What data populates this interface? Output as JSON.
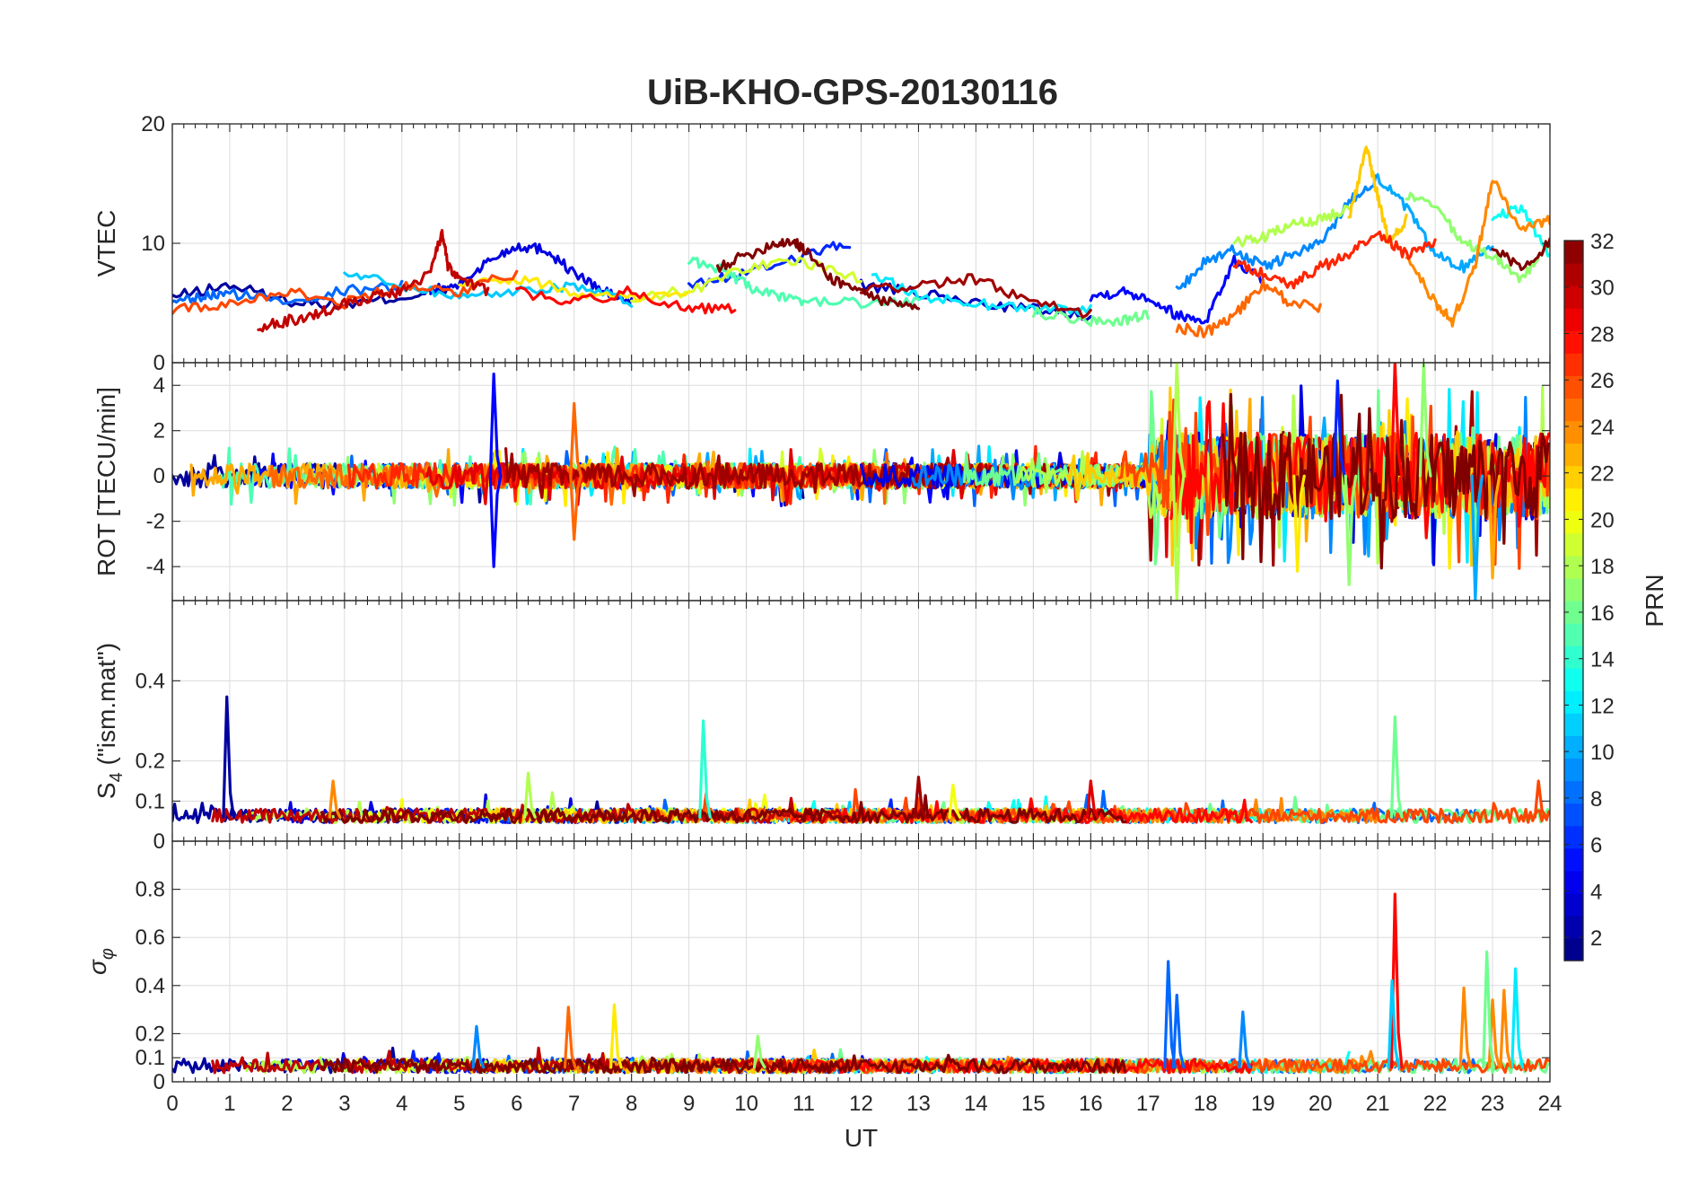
{
  "chart_data": {
    "type": "line",
    "title": "UiB-KHO-GPS-20130116",
    "xlabel": "UT",
    "xlim": [
      0,
      24
    ],
    "xticks": [
      0,
      1,
      2,
      3,
      4,
      5,
      6,
      7,
      8,
      9,
      10,
      11,
      12,
      13,
      14,
      15,
      16,
      17,
      18,
      19,
      20,
      21,
      22,
      23,
      24
    ],
    "grid": true,
    "colorbar": {
      "label": "PRN",
      "range": [
        1,
        32
      ],
      "ticks": [
        2,
        4,
        6,
        8,
        10,
        12,
        14,
        16,
        18,
        20,
        22,
        24,
        26,
        28,
        30,
        32
      ],
      "colormap": "jet",
      "placement": "right"
    },
    "panels": [
      {
        "id": "vtec",
        "ylabel": "VTEC",
        "ylim": [
          0,
          20
        ],
        "yticks": [
          0,
          10,
          20
        ],
        "series": [
          {
            "prn": 2,
            "x": [
              0,
              1,
              2,
              3,
              4,
              4.8
            ],
            "y": [
              5.5,
              6.5,
              5.2,
              4.8,
              5.5,
              6
            ]
          },
          {
            "prn": 4,
            "x": [
              4.5,
              5,
              5.5,
              6,
              6.5,
              7,
              7.5,
              8
            ],
            "y": [
              6,
              6.5,
              8.5,
              9.8,
              9.5,
              7.5,
              6,
              5
            ]
          },
          {
            "prn": 6,
            "x": [
              9,
              10,
              11,
              11.8
            ],
            "y": [
              6.5,
              7.5,
              9,
              10
            ]
          },
          {
            "prn": 3,
            "x": [
              12,
              13,
              14,
              15,
              16
            ],
            "y": [
              6.5,
              5.8,
              5,
              4.5,
              4
            ]
          },
          {
            "prn": 5,
            "x": [
              16,
              16.5,
              17,
              17.5,
              18,
              18.5,
              19
            ],
            "y": [
              5.5,
              6,
              5.5,
              4,
              3.5,
              8.5,
              7
            ]
          },
          {
            "prn": 8,
            "x": [
              0,
              0.5,
              1,
              2,
              3,
              4
            ],
            "y": [
              4.8,
              5.5,
              5.8,
              5.2,
              6,
              6.5
            ]
          },
          {
            "prn": 9,
            "x": [
              17.5,
              18,
              18.5,
              19,
              19.5,
              20,
              20.5,
              21
            ],
            "y": [
              6,
              8.5,
              9.5,
              8,
              9,
              10,
              13.5,
              15.5
            ]
          },
          {
            "prn": 10,
            "x": [
              21,
              21.5,
              22,
              22.5,
              23
            ],
            "y": [
              15.5,
              13,
              9,
              8,
              10
            ]
          },
          {
            "prn": 11,
            "x": [
              3,
              4,
              5,
              6,
              7,
              8
            ],
            "y": [
              7.5,
              6.5,
              5.5,
              6,
              6.5,
              5
            ]
          },
          {
            "prn": 12,
            "x": [
              12.2,
              13,
              14,
              15,
              16
            ],
            "y": [
              7.5,
              5.5,
              5,
              4.5,
              4.5
            ]
          },
          {
            "prn": 13,
            "x": [
              23,
              23.5,
              24
            ],
            "y": [
              12,
              13,
              9
            ]
          },
          {
            "prn": 15,
            "x": [
              9,
              9.5,
              10,
              10.5,
              11,
              12,
              13
            ],
            "y": [
              8.5,
              8,
              6.5,
              5.5,
              5.2,
              5,
              5
            ]
          },
          {
            "prn": 16,
            "x": [
              15,
              16,
              16.5,
              17
            ],
            "y": [
              4.2,
              3.5,
              3.5,
              4
            ]
          },
          {
            "prn": 17,
            "x": [
              21.5,
              22,
              22.5,
              23,
              23.5,
              24
            ],
            "y": [
              14,
              13,
              10,
              9,
              7,
              10
            ]
          },
          {
            "prn": 18,
            "x": [
              18.5,
              19,
              19.5,
              20,
              20.5
            ],
            "y": [
              10,
              10.5,
              11.5,
              12,
              13
            ]
          },
          {
            "prn": 19,
            "x": [
              8,
              9,
              10,
              11,
              12
            ],
            "y": [
              5.5,
              6,
              8,
              8.5,
              7
            ]
          },
          {
            "prn": 21,
            "x": [
              5,
              6,
              7,
              8,
              9
            ],
            "y": [
              6.5,
              7,
              6,
              5.5,
              6
            ]
          },
          {
            "prn": 22,
            "x": [
              20.5,
              20.8,
              21,
              21.2,
              21.5
            ],
            "y": [
              12,
              18,
              14,
              10,
              12
            ]
          },
          {
            "prn": 24,
            "x": [
              21.5,
              22,
              22.3,
              22.7,
              23,
              23.5,
              24
            ],
            "y": [
              9,
              5,
              3.5,
              8,
              15.5,
              11,
              12
            ]
          },
          {
            "prn": 25,
            "x": [
              17.5,
              18,
              18.5,
              19,
              19.5,
              20
            ],
            "y": [
              3,
              2.5,
              4,
              6.5,
              5,
              4.5
            ]
          },
          {
            "prn": 26,
            "x": [
              0,
              1,
              2,
              3,
              4,
              5,
              6
            ],
            "y": [
              4.5,
              5,
              6,
              5,
              6.5,
              6,
              7.5
            ]
          },
          {
            "prn": 27,
            "x": [
              18.5,
              19,
              19.5,
              20,
              20.5,
              21,
              21.5,
              22
            ],
            "y": [
              8.5,
              7.5,
              6.5,
              8,
              9,
              11,
              9,
              10
            ]
          },
          {
            "prn": 28,
            "x": [
              6,
              7,
              8,
              9,
              9.8
            ],
            "y": [
              6,
              5,
              6,
              4.5,
              4.5
            ]
          },
          {
            "prn": 30,
            "x": [
              1.5,
              2,
              2.5,
              3,
              3.5,
              4,
              4.5,
              4.7,
              4.8,
              5,
              5.5
            ],
            "y": [
              3,
              3.5,
              4,
              5,
              5.5,
              6,
              7.5,
              11,
              8,
              7,
              6
            ]
          },
          {
            "prn": 31,
            "x": [
              12,
              13,
              14,
              15,
              16
            ],
            "y": [
              6,
              6.5,
              7,
              5,
              4
            ]
          },
          {
            "prn": 32,
            "x": [
              9.5,
              10,
              10.5,
              10.8,
              11,
              11.5,
              12,
              12.5,
              13
            ],
            "y": [
              8,
              9,
              10,
              10.2,
              9.5,
              7,
              6,
              5,
              4.5
            ]
          },
          {
            "prn": 32,
            "x": [
              23,
              23.5,
              24
            ],
            "y": [
              9.5,
              8,
              10
            ]
          }
        ]
      },
      {
        "id": "rot",
        "ylabel": "ROT [TECU/min]",
        "ylim": [
          -5.5,
          5
        ],
        "yticks": [
          -4,
          -2,
          0,
          2,
          4
        ],
        "noise_note": "dense ROT traces around zero for all PRNs",
        "spikes": [
          {
            "prn": 5,
            "x": 5.6,
            "y": 4.5
          },
          {
            "prn": 5,
            "x": 5.6,
            "y": -4
          },
          {
            "prn": 25,
            "x": 7,
            "y": 3.2
          },
          {
            "prn": 25,
            "x": 7,
            "y": -2.8
          },
          {
            "prn": 18,
            "x": 17.5,
            "y": 5
          },
          {
            "prn": 18,
            "x": 17.5,
            "y": -5.5
          },
          {
            "prn": 6,
            "x": 20.3,
            "y": 4.2
          },
          {
            "prn": 28,
            "x": 21.3,
            "y": 5
          },
          {
            "prn": 17,
            "x": 21.8,
            "y": 5
          },
          {
            "prn": 23,
            "x": 23,
            "y": -4.5
          },
          {
            "prn": 10,
            "x": 22.7,
            "y": -5.5
          },
          {
            "prn": 21,
            "x": 19.6,
            "y": -4.2
          },
          {
            "prn": 17,
            "x": 20.5,
            "y": -4.8
          }
        ]
      },
      {
        "id": "s4",
        "ylabel": "S4 (\"ism.mat\")",
        "ylabel_main": "S",
        "ylabel_sub": "4",
        "ylabel_rest": " (\"ism.mat\")",
        "ylim": [
          0,
          0.6
        ],
        "yticks": [
          0,
          0.1,
          0.2,
          0.4
        ],
        "baseline": 0.06,
        "spikes": [
          {
            "prn": 2,
            "x": 0.95,
            "y": 0.36
          },
          {
            "prn": 14,
            "x": 9.25,
            "y": 0.3
          },
          {
            "prn": 16,
            "x": 21.3,
            "y": 0.31
          },
          {
            "prn": 31,
            "x": 13,
            "y": 0.16
          },
          {
            "prn": 29,
            "x": 16,
            "y": 0.15
          },
          {
            "prn": 24,
            "x": 2.8,
            "y": 0.15
          },
          {
            "prn": 18,
            "x": 6.2,
            "y": 0.17
          },
          {
            "prn": 20,
            "x": 13.6,
            "y": 0.14
          },
          {
            "prn": 26,
            "x": 23.8,
            "y": 0.15
          }
        ]
      },
      {
        "id": "sigma",
        "ylabel": "σφ",
        "ylabel_main": "σ",
        "ylabel_sub": "φ",
        "ylim": [
          0,
          1
        ],
        "yticks": [
          0,
          0.1,
          0.2,
          0.4,
          0.6,
          0.8
        ],
        "baseline": 0.06,
        "spikes": [
          {
            "prn": 8,
            "x": 17.35,
            "y": 0.5
          },
          {
            "prn": 8,
            "x": 17.5,
            "y": 0.36
          },
          {
            "prn": 9,
            "x": 18.65,
            "y": 0.29
          },
          {
            "prn": 28,
            "x": 21.3,
            "y": 0.78
          },
          {
            "prn": 11,
            "x": 21.25,
            "y": 0.42
          },
          {
            "prn": 24,
            "x": 22.5,
            "y": 0.39
          },
          {
            "prn": 24,
            "x": 23,
            "y": 0.34
          },
          {
            "prn": 16,
            "x": 22.9,
            "y": 0.54
          },
          {
            "prn": 12,
            "x": 23.4,
            "y": 0.47
          },
          {
            "prn": 24,
            "x": 23.2,
            "y": 0.38
          },
          {
            "prn": 21,
            "x": 7.7,
            "y": 0.32
          },
          {
            "prn": 25,
            "x": 6.9,
            "y": 0.31
          },
          {
            "prn": 9,
            "x": 5.3,
            "y": 0.23
          },
          {
            "prn": 17,
            "x": 10.2,
            "y": 0.19
          }
        ]
      }
    ]
  }
}
